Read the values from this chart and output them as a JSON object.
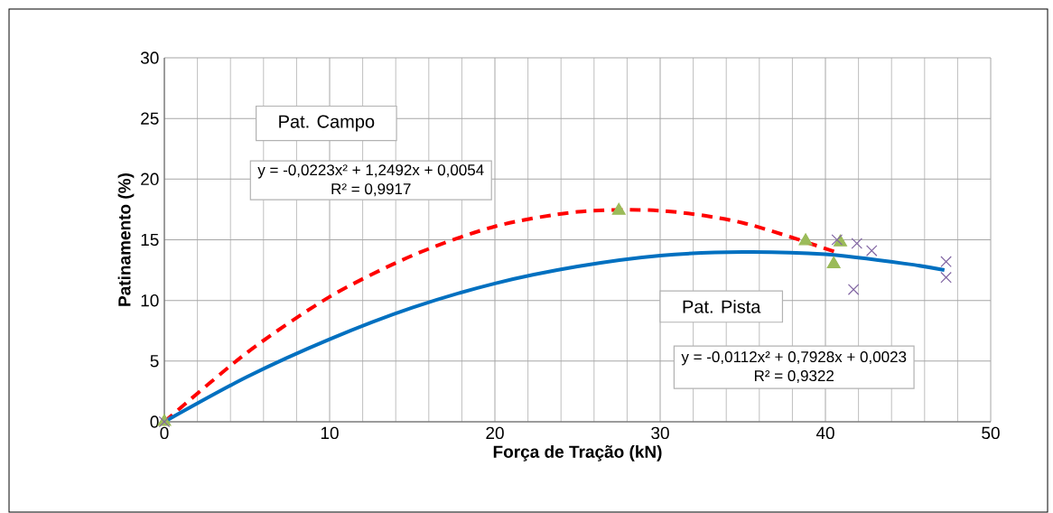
{
  "chart_data": {
    "type": "scatter",
    "xlabel": "Força de Tração (kN)",
    "ylabel": "Patinamento (%)",
    "xlim": [
      0,
      50
    ],
    "ylim": [
      0,
      30
    ],
    "xticks": [
      0,
      10,
      20,
      30,
      40,
      50
    ],
    "yticks": [
      0,
      5,
      10,
      15,
      20,
      25,
      30
    ],
    "grid": true,
    "series": [
      {
        "type": "line",
        "color": "#ff0000",
        "line_style": "dashed",
        "marker": "none",
        "x": [
          0,
          5,
          10,
          15,
          20,
          25,
          30,
          35,
          40.6
        ],
        "values": [
          0,
          5.7,
          10.3,
          13.7,
          16.1,
          17.3,
          17.4,
          16.4,
          14.0
        ]
      },
      {
        "type": "line",
        "color": "#0070c0",
        "line_style": "solid",
        "marker": "none",
        "x": [
          0,
          5,
          10,
          15,
          20,
          25,
          30,
          35,
          40,
          45,
          47.2
        ],
        "values": [
          0,
          3.7,
          6.8,
          9.4,
          11.4,
          12.8,
          13.7,
          14.0,
          13.8,
          13.0,
          12.5
        ]
      },
      {
        "color": "#9bbb59",
        "marker": "triangle",
        "x": [
          0,
          27.5,
          38.8,
          40.9,
          40.5
        ],
        "values": [
          0,
          17.4,
          14.9,
          14.8,
          13.0
        ]
      },
      {
        "color": "#8064a2",
        "marker": "cross",
        "x": [
          0,
          40.7,
          41.9,
          42.8,
          41.7,
          47.3,
          47.3
        ],
        "values": [
          0,
          15.0,
          14.7,
          14.1,
          10.9,
          13.2,
          11.9
        ]
      }
    ],
    "annotations": [
      "Pat. Campo",
      "y = -0,0223x² + 1,2492x + 0,0054",
      "R² = 0,9917",
      "Pat. Pista",
      "y = -0,0112x² + 0,7928x + 0,0023",
      "R² = 0,9322"
    ]
  }
}
